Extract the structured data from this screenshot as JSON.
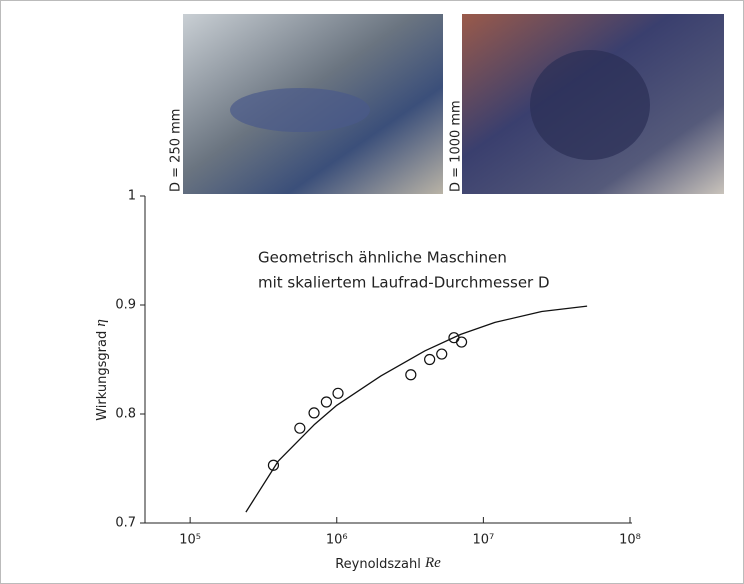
{
  "chart_data": {
    "type": "scatter",
    "photo_labels": [
      "D = 250 mm",
      "D = 1000 mm"
    ],
    "annotation": [
      "Geometrisch ähnliche Maschinen",
      "mit skaliertem Laufrad-Durchmesser D"
    ],
    "x_label": {
      "text": "Reynoldszahl",
      "symbol": "Re"
    },
    "y_label": {
      "text": "Wirkungsgrad",
      "symbol": "η"
    },
    "log_x": true,
    "xlim": [
      50000,
      100000000
    ],
    "xticks": [
      {
        "value": 100000,
        "label": "10⁵"
      },
      {
        "value": 1000000,
        "label": "10⁶"
      },
      {
        "value": 10000000,
        "label": "10⁷"
      },
      {
        "value": 100000000,
        "label": "10⁸"
      }
    ],
    "ylim": [
      0.7,
      1
    ],
    "yticks": [
      0.7,
      0.8,
      0.9,
      1
    ],
    "color": "#111111",
    "x": [
      370000,
      560000,
      700000,
      850000,
      1020000,
      3200000,
      4300000,
      5200000,
      6300000,
      7100000
    ],
    "values": [
      0.753,
      0.787,
      0.801,
      0.811,
      0.819,
      0.836,
      0.85,
      0.855,
      0.87,
      0.866
    ],
    "curve": {
      "x": [
        240000,
        400000,
        700000,
        1000000,
        2000000,
        4000000,
        7000000,
        12000000,
        25000000,
        51000000
      ],
      "values": [
        0.71,
        0.757,
        0.79,
        0.808,
        0.835,
        0.858,
        0.873,
        0.884,
        0.894,
        0.899
      ]
    }
  }
}
